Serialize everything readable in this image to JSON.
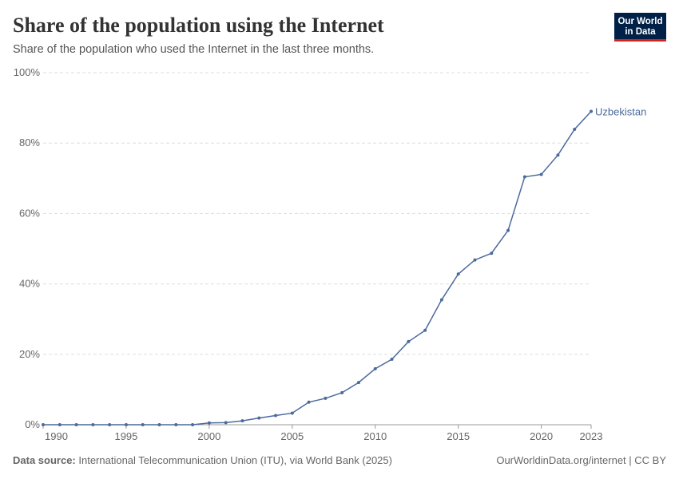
{
  "chart_data": {
    "type": "line",
    "title": "Share of the population using the Internet",
    "subtitle": "Share of the population who used the Internet in the last three months.",
    "logo": [
      "Our World",
      "in Data"
    ],
    "source_label": "Data source:",
    "source": "International Telecommunication Union (ITU), via World Bank (2025)",
    "credit": "OurWorldinData.org/internet | CC BY",
    "x": [
      1990,
      1991,
      1992,
      1993,
      1994,
      1995,
      1996,
      1997,
      1998,
      1999,
      2000,
      2001,
      2002,
      2003,
      2004,
      2005,
      2006,
      2007,
      2008,
      2009,
      2010,
      2011,
      2012,
      2013,
      2014,
      2015,
      2016,
      2017,
      2018,
      2019,
      2020,
      2021,
      2022,
      2023
    ],
    "series": [
      {
        "name": "Uzbekistan",
        "color": "#4c6a9c",
        "values": [
          0,
          0,
          0,
          0,
          0,
          0,
          0,
          0,
          0,
          0,
          0.5,
          0.6,
          1.1,
          1.9,
          2.6,
          3.3,
          6.4,
          7.5,
          9.1,
          12,
          15.9,
          18.6,
          23.6,
          26.8,
          35.5,
          42.8,
          46.8,
          48.7,
          55.2,
          70.4,
          71.1,
          76.6,
          83.9,
          89
        ]
      }
    ],
    "xlim": [
      1990,
      2023
    ],
    "xticks": [
      1990,
      1995,
      2000,
      2005,
      2010,
      2015,
      2020,
      2023
    ],
    "ylim": [
      0,
      100
    ],
    "yticks": [
      {
        "value": 0,
        "label": "0%"
      },
      {
        "value": 20,
        "label": "20%"
      },
      {
        "value": 40,
        "label": "40%"
      },
      {
        "value": 60,
        "label": "60%"
      },
      {
        "value": 80,
        "label": "80%"
      },
      {
        "value": 100,
        "label": "100%"
      }
    ],
    "grid": true
  }
}
